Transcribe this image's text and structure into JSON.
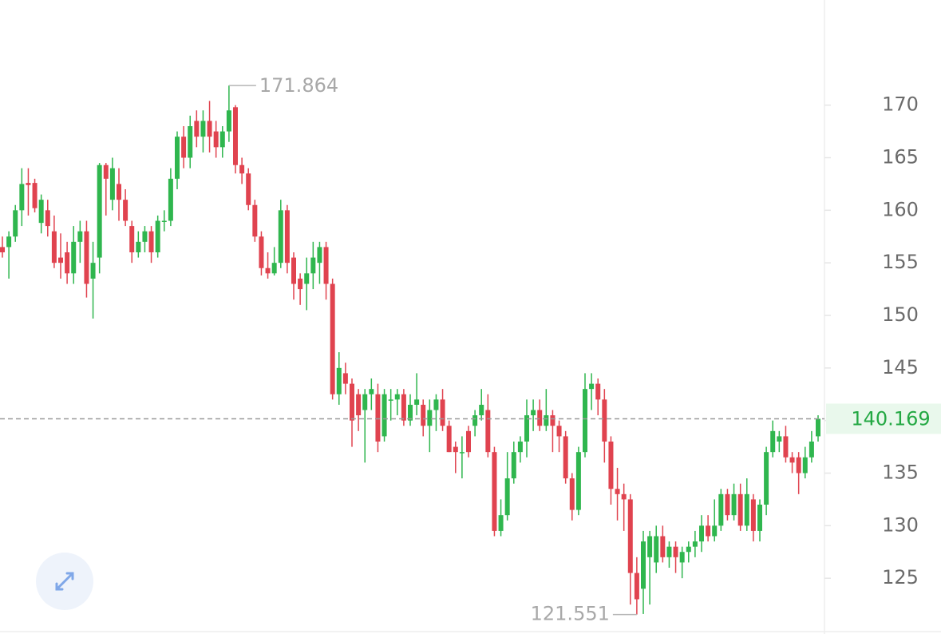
{
  "chart_data": {
    "type": "candlestick",
    "open": [
      156.5,
      156.5,
      157.5,
      160,
      162.6,
      162.6,
      158.8,
      160,
      158,
      155.5,
      156,
      154,
      157,
      158,
      153.5,
      155.5,
      164.3,
      161,
      162.5,
      161,
      158.5,
      156,
      157,
      158,
      156,
      159,
      159,
      163,
      167,
      165,
      168.5,
      167,
      168.5,
      167.5,
      166,
      167.5,
      169.8,
      164.3,
      163.5,
      160.5,
      157.5,
      154.5,
      154,
      155,
      160,
      155.5,
      153.5,
      153,
      154,
      155,
      156.5,
      153,
      142.5,
      144.5,
      143.5,
      142.5,
      141,
      142.5,
      142.5,
      138.5,
      142,
      142,
      142.5,
      140,
      141.5,
      141.5,
      139.5,
      141,
      142,
      139.5,
      137.5,
      137,
      139,
      139.5,
      140.5,
      141,
      137,
      129.5,
      131,
      134.5,
      137,
      138,
      140.5,
      141,
      139.5,
      140.5,
      139.5,
      138.5,
      134.5,
      131.5,
      137,
      143,
      143.5,
      142,
      138,
      133.5,
      133,
      132.5,
      125.5,
      124,
      127,
      126.5,
      129,
      127,
      128,
      126.5,
      127.5,
      128,
      128.5,
      130,
      129,
      130,
      133,
      131,
      133,
      130,
      132.5,
      129.5,
      132,
      137,
      138,
      138.5,
      136.5,
      136.5,
      135,
      136.5,
      138.5
    ],
    "high": [
      157.5,
      158,
      160.5,
      164,
      164,
      163,
      161.5,
      161,
      159.5,
      157.8,
      157,
      158.5,
      159,
      159,
      157,
      164.5,
      164.5,
      165,
      164,
      162,
      159,
      158,
      158.5,
      158.5,
      159.5,
      160,
      164,
      167.5,
      168,
      169,
      169.5,
      169.5,
      170.4,
      168.5,
      168,
      171.864,
      170,
      165,
      164,
      161,
      158,
      156,
      156.5,
      161,
      160.5,
      156,
      154,
      155.5,
      157,
      157,
      157,
      153.5,
      146.5,
      145.5,
      144,
      143,
      143,
      144,
      143.5,
      143,
      143,
      143,
      143,
      142.5,
      144.5,
      142,
      142,
      142.5,
      143,
      140,
      138,
      138.5,
      139.5,
      141,
      143,
      142.5,
      137.5,
      132.5,
      137,
      138,
      138.5,
      142,
      142,
      142,
      143,
      141,
      140,
      139,
      135,
      137.5,
      144.5,
      144.5,
      144,
      143,
      138.5,
      135.5,
      134,
      133,
      127,
      129.5,
      129.5,
      130,
      130,
      128.5,
      128.5,
      128,
      128.5,
      129.5,
      131,
      131,
      132.5,
      133.5,
      133.5,
      134,
      134,
      134.5,
      133,
      132.5,
      137.5,
      140,
      139,
      139.5,
      137,
      137,
      137.5,
      139,
      140.5
    ],
    "low": [
      155.5,
      153.5,
      157,
      158.5,
      159.5,
      159.8,
      157.8,
      157.5,
      154.5,
      153.5,
      153,
      153,
      155,
      151.7,
      149.7,
      154,
      159.5,
      160,
      159,
      158.5,
      155,
      155.5,
      156,
      155,
      155.5,
      158,
      158.5,
      162,
      164,
      164,
      166,
      165.5,
      165.5,
      165,
      165,
      166.5,
      163.5,
      162.5,
      160,
      157,
      153.8,
      153.5,
      153.8,
      154.5,
      154,
      151.5,
      151,
      150.5,
      152.5,
      153,
      151.5,
      142,
      141.5,
      142.5,
      137.5,
      139,
      136,
      141,
      137,
      138,
      140,
      140.5,
      139.5,
      139.5,
      140.5,
      138.5,
      137,
      139,
      139,
      137,
      135,
      134.5,
      136.5,
      138.5,
      140,
      136.5,
      129,
      129,
      130.5,
      134,
      136,
      136.5,
      139,
      139,
      139,
      137,
      137,
      134,
      130.5,
      131,
      136.5,
      141,
      140.5,
      136,
      132,
      130.5,
      129.5,
      122.5,
      121.551,
      121.6,
      122.5,
      125.5,
      126.5,
      126,
      125.5,
      125,
      126.5,
      127,
      127.5,
      128.5,
      128.5,
      129.5,
      130.5,
      130.5,
      129.5,
      129.5,
      128.5,
      128.5,
      131,
      136.5,
      137,
      136,
      135,
      133,
      134.5,
      136,
      138
    ],
    "close": [
      156,
      157.5,
      160,
      162.5,
      162.4,
      160.2,
      161,
      158.5,
      155,
      155,
      154,
      157,
      158,
      153,
      155,
      164.3,
      163,
      164,
      161,
      159,
      156,
      157,
      158,
      156,
      159,
      159,
      163,
      167,
      165,
      168,
      167,
      168.5,
      167,
      166,
      167.5,
      169.5,
      164.3,
      163.5,
      160.5,
      157.5,
      154.5,
      154,
      155,
      160,
      155,
      153,
      152.5,
      154,
      155.5,
      156.5,
      153,
      142.5,
      145,
      143.5,
      140,
      140.5,
      142.5,
      143,
      138,
      142.5,
      142,
      142.5,
      140,
      141.5,
      142,
      139.5,
      141,
      142,
      139.5,
      137,
      137,
      137,
      137,
      140.5,
      141.5,
      137,
      129.5,
      131,
      134.5,
      137,
      138,
      140.5,
      141,
      139.5,
      140.5,
      139.5,
      138.5,
      134.5,
      131.5,
      137,
      143,
      143.5,
      142,
      138,
      133.5,
      133,
      132.5,
      125.5,
      123,
      128.5,
      129,
      129,
      127,
      128,
      127,
      127.5,
      128,
      128.5,
      130,
      129,
      130,
      133,
      131,
      133,
      130,
      133,
      129.5,
      132,
      137,
      139,
      138.5,
      136.5,
      136,
      135,
      136.5,
      138,
      140.169
    ],
    "up_color": "#2fb64e",
    "down_color": "#e0434f",
    "ylim": [
      120,
      180
    ],
    "yticks": [
      125,
      130,
      135,
      140,
      145,
      150,
      155,
      160,
      165,
      170
    ],
    "last_price_line": true,
    "max_index": 35,
    "min_index": 98
  }
}
